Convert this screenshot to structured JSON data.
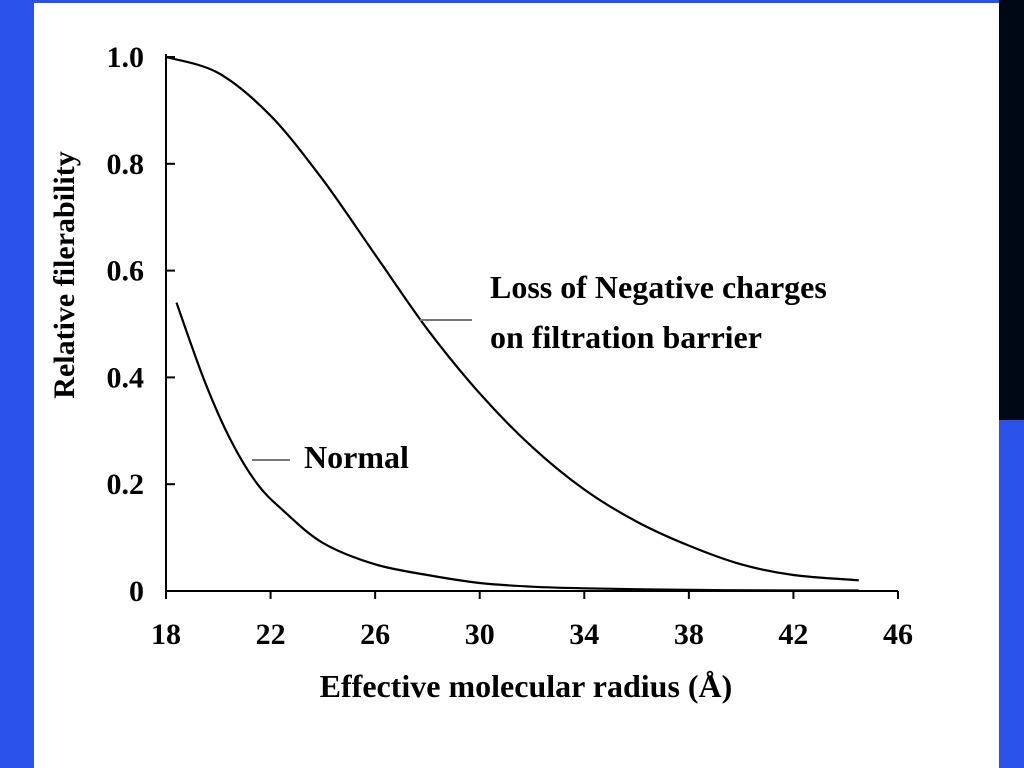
{
  "colors": {
    "frame_blue": "#2a52e8",
    "frame_dark": "#000814",
    "ink": "#000000"
  },
  "chart_data": {
    "type": "line",
    "title": "",
    "xlabel": "Effective molecular radius (Å)",
    "ylabel": "Relative filerability",
    "xlim": [
      18,
      46
    ],
    "ylim": [
      0,
      1.0
    ],
    "xticks": [
      "18",
      "22",
      "26",
      "30",
      "34",
      "38",
      "42",
      "46"
    ],
    "yticks": [
      "0",
      "0.2",
      "0.4",
      "0.6",
      "0.8",
      "1.0"
    ],
    "grid": false,
    "series": [
      {
        "name": "Loss of Negative charges on filtration barrier",
        "label_lines": [
          "Loss of Negative charges",
          "on filtration barrier"
        ],
        "x": [
          18,
          20,
          22,
          24,
          26,
          28,
          30,
          32,
          34,
          36,
          38,
          40,
          42,
          44.5
        ],
        "y": [
          1.0,
          0.97,
          0.89,
          0.77,
          0.63,
          0.49,
          0.37,
          0.27,
          0.19,
          0.13,
          0.085,
          0.05,
          0.03,
          0.02
        ]
      },
      {
        "name": "Normal",
        "label_lines": [
          "Normal"
        ],
        "x": [
          18.4,
          19.5,
          20.5,
          21.5,
          22.5,
          24,
          26,
          28,
          30,
          32,
          34,
          38,
          42,
          44.5
        ],
        "y": [
          0.54,
          0.39,
          0.28,
          0.2,
          0.15,
          0.09,
          0.05,
          0.03,
          0.015,
          0.008,
          0.005,
          0.002,
          0.001,
          0.001
        ]
      }
    ]
  }
}
